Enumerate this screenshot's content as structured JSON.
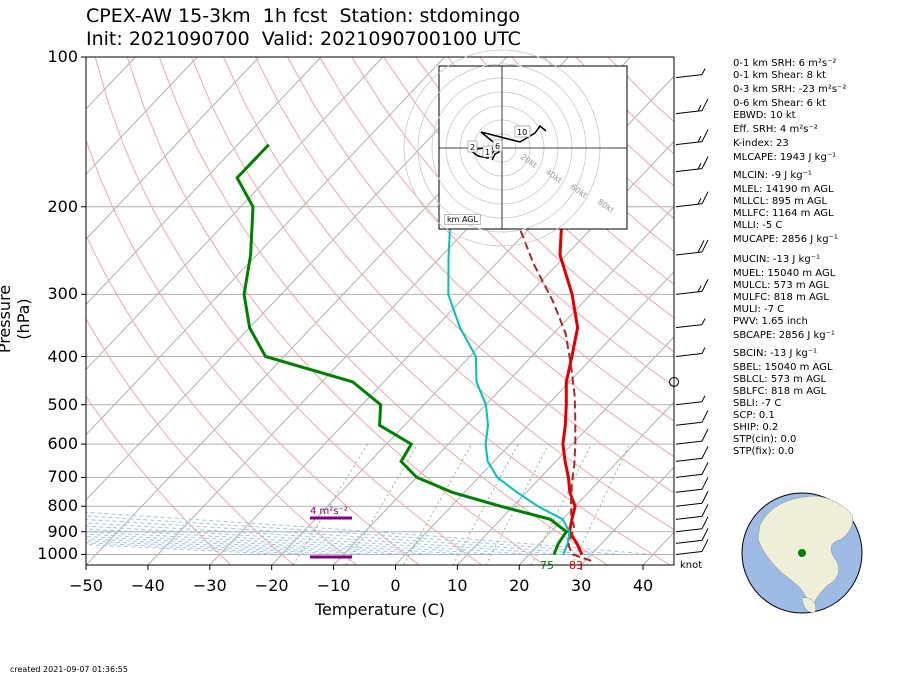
{
  "title_line1": "CPEX-AW 15-3km  1h fcst  Station: stdomingo",
  "title_line2": "Init: 2021090700  Valid: 2021090700100 UTC",
  "footer": "created 2021-09-07 01:36:55",
  "wind_unit": "knot",
  "hodograph": {
    "unit_label": "km AGL",
    "ring_labels": [
      "20kt",
      "40kt",
      "60kt",
      "80kt"
    ],
    "height_labels": [
      "2",
      "1",
      "6",
      "10"
    ]
  },
  "srh_labels": [
    "4 m²s⁻²"
  ],
  "surface_labels": {
    "dewpoint": "75",
    "temperature": "83"
  },
  "indices": [
    "0-1 km SRH: 6 m²s⁻²",
    "0-1 km Shear: 8 kt",
    "0-3 km SRH: -23 m²s⁻²",
    "0-6 km Shear: 6 kt",
    "EBWD: 10 kt",
    "Eff. SRH: 4 m²s⁻²",
    "K-index: 23",
    "MLCAPE: 1943 J kg⁻¹",
    "MLCIN: -9 J kg⁻¹",
    "MLEL: 14190 m AGL",
    "MLLCL: 895 m AGL",
    "MLLFC: 1164 m AGL",
    "MLLI: -5 C",
    "MUCAPE: 2856 J kg⁻¹",
    "MUCIN: -13 J kg⁻¹",
    "MUEL: 15040 m AGL",
    "MULCL: 573 m AGL",
    "MULFC: 818 m AGL",
    "MULI: -7 C",
    "PWV: 1.65 inch",
    "SBCAPE: 2856 J kg⁻¹",
    "SBCIN: -13 J kg⁻¹",
    "SBEL: 15040 m AGL",
    "SBLCL: 573 m AGL",
    "SBLFC: 818 m AGL",
    "SBLI: -7 C",
    "SCP: 0.1",
    "SHIP: 0.2",
    "STP(cin): 0.0",
    "STP(fix): 0.0"
  ],
  "chart_data": {
    "type": "line",
    "xlabel": "Temperature (C)",
    "ylabel": "Pressure (hPa)",
    "xlim": [
      -50,
      45
    ],
    "ylim": [
      1050,
      100
    ],
    "y_scale": "log",
    "x_ticks": [
      -50,
      -40,
      -30,
      -20,
      -10,
      0,
      10,
      20,
      30,
      40
    ],
    "y_ticks": [
      100,
      200,
      300,
      400,
      500,
      600,
      700,
      800,
      900,
      1000
    ],
    "grid": true,
    "skew": true,
    "colors": {
      "temperature": "#e00000",
      "dewpoint": "#008000",
      "wetbulb": "#00c0c0",
      "parcel": "#a52a2a",
      "srh": "#800080"
    },
    "series": [
      {
        "name": "temperature",
        "points": [
          [
            28.5,
            1000
          ],
          [
            26,
            950
          ],
          [
            23,
            900
          ],
          [
            21.5,
            850
          ],
          [
            20,
            800
          ],
          [
            17,
            750
          ],
          [
            14.5,
            700
          ],
          [
            11.5,
            650
          ],
          [
            8.5,
            600
          ],
          [
            6,
            550
          ],
          [
            3,
            500
          ],
          [
            -0.5,
            450
          ],
          [
            -3.5,
            400
          ],
          [
            -7,
            350
          ],
          [
            -13,
            300
          ],
          [
            -21,
            250
          ],
          [
            -28,
            200
          ],
          [
            -35,
            175
          ],
          [
            -44,
            150
          ]
        ]
      },
      {
        "name": "wetbulb",
        "points": [
          [
            25.5,
            1000
          ],
          [
            24.5,
            950
          ],
          [
            23,
            900
          ],
          [
            20,
            850
          ],
          [
            14,
            800
          ],
          [
            8.5,
            750
          ],
          [
            3,
            700
          ],
          [
            -1,
            650
          ],
          [
            -4,
            600
          ],
          [
            -6.5,
            550
          ],
          [
            -10,
            500
          ],
          [
            -15,
            450
          ],
          [
            -19,
            400
          ],
          [
            -26,
            350
          ],
          [
            -33,
            300
          ],
          [
            -39,
            250
          ],
          [
            -46,
            200
          ],
          [
            -52,
            175
          ],
          [
            -55,
            150
          ]
        ]
      },
      {
        "name": "dewpoint",
        "points": [
          [
            24,
            1000
          ],
          [
            23,
            950
          ],
          [
            22.5,
            900
          ],
          [
            18,
            850
          ],
          [
            8,
            800
          ],
          [
            -2,
            750
          ],
          [
            -10,
            700
          ],
          [
            -15,
            650
          ],
          [
            -16,
            600
          ],
          [
            -24,
            550
          ],
          [
            -27,
            500
          ],
          [
            -35,
            450
          ],
          [
            -53,
            400
          ],
          [
            -60,
            350
          ],
          [
            -66,
            300
          ],
          [
            -71,
            250
          ],
          [
            -78,
            200
          ],
          [
            -85,
            175
          ],
          [
            -85,
            150
          ]
        ]
      },
      {
        "name": "parcel",
        "points": [
          [
            31,
            1030
          ],
          [
            27,
            1000
          ],
          [
            25,
            960
          ],
          [
            24,
            920
          ],
          [
            23,
            880
          ],
          [
            21,
            840
          ],
          [
            18.5,
            780
          ],
          [
            16,
            720
          ],
          [
            13.5,
            660
          ],
          [
            10.5,
            600
          ],
          [
            7,
            540
          ],
          [
            3,
            480
          ],
          [
            -2,
            420
          ],
          [
            -8,
            360
          ],
          [
            -15,
            310
          ],
          [
            -24,
            260
          ],
          [
            -34,
            210
          ],
          [
            -47,
            170
          ]
        ]
      }
    ],
    "wind_barbs": [
      {
        "p": 1000,
        "speed_kt": 10
      },
      {
        "p": 950,
        "speed_kt": 10
      },
      {
        "p": 900,
        "speed_kt": 10
      },
      {
        "p": 850,
        "speed_kt": 10
      },
      {
        "p": 800,
        "speed_kt": 10
      },
      {
        "p": 750,
        "speed_kt": 10
      },
      {
        "p": 700,
        "speed_kt": 10
      },
      {
        "p": 650,
        "speed_kt": 10
      },
      {
        "p": 600,
        "speed_kt": 10
      },
      {
        "p": 550,
        "speed_kt": 10
      },
      {
        "p": 500,
        "speed_kt": 5
      },
      {
        "p": 400,
        "speed_kt": 5
      },
      {
        "p": 350,
        "speed_kt": 5
      },
      {
        "p": 300,
        "speed_kt": 15
      },
      {
        "p": 250,
        "speed_kt": 20
      },
      {
        "p": 200,
        "speed_kt": 15
      },
      {
        "p": 170,
        "speed_kt": 15
      },
      {
        "p": 150,
        "speed_kt": 15
      },
      {
        "p": 130,
        "speed_kt": 15
      },
      {
        "p": 110,
        "speed_kt": 5
      }
    ]
  }
}
